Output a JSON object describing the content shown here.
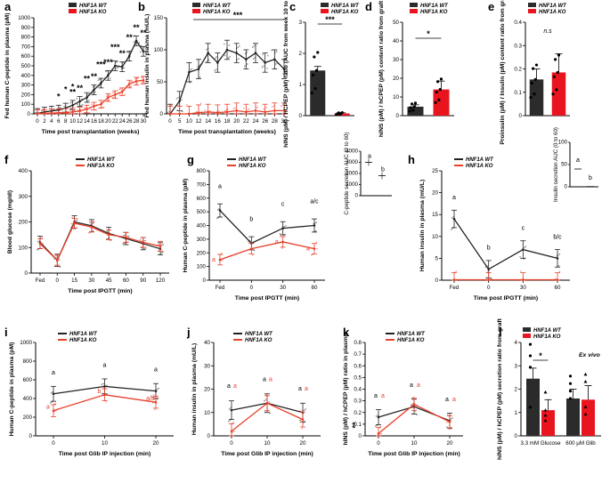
{
  "colors": {
    "wt": "#222222",
    "ko": "#e8402a",
    "ko_bar": "#e8141e",
    "wt_bar": "#2b2b2b"
  },
  "legend": {
    "wt": "HNF1A WT",
    "ko": "HNF1A KO"
  },
  "panels": {
    "a": {
      "label": "a",
      "ylabel": "Fed human C-peptide in plasma (pM)",
      "xlabel": "Time post transplantation (weeks)",
      "stars": [
        "*",
        "*",
        "**",
        "*",
        "**",
        "**",
        "**",
        "***",
        "***",
        "***",
        "**",
        "**",
        "**",
        "**"
      ]
    },
    "b": {
      "label": "b",
      "ylabel": "Fed human insulin in plasma (mU/L)",
      "xlabel": "Time post transplantation (weeks)",
      "stars": [
        "***"
      ]
    },
    "c": {
      "label": "c",
      "ylabel": "hINS (pM) / hCPEP (pM) ratio (AUC from week 10 to 30)",
      "stars": [
        "***"
      ]
    },
    "d": {
      "label": "d",
      "ylabel": "hINS (pM) / hCPEP (pM) content ratio from graft",
      "stars": [
        "*"
      ]
    },
    "e": {
      "label": "e",
      "ylabel": "Proinsulin (pM) / Insulin (pM) content ratio from graft",
      "stars": [
        "n.s"
      ]
    },
    "f": {
      "label": "f",
      "ylabel": "Blood glucose (mg/dl)",
      "xlabel": "Time post IPGTT (min)"
    },
    "g": {
      "label": "g",
      "ylabel": "Human C-peptide in plasma (pM)",
      "xlabel": "Time post IPGTT (min)",
      "inset_ylabel": "C-peptide secretion AUC (0 to 60)",
      "letters_wt": [
        "a",
        "b",
        "c",
        "a/c"
      ],
      "letters_ko": [
        "a",
        "a",
        "a"
      ],
      "inset_letters": [
        "a",
        "b"
      ]
    },
    "h": {
      "label": "h",
      "ylabel": "Human insulin in plasma (mU/L)",
      "xlabel": "Time post IPGTT (min)",
      "inset_ylabel": "Insulin secretion AUC (0 to 60)",
      "letters_wt": [
        "a",
        "b",
        "c",
        "b/c"
      ],
      "inset_letters": [
        "a",
        "b"
      ]
    },
    "i": {
      "label": "i",
      "ylabel": "Human C-peptide in plasma (pM)",
      "xlabel": "Time post Glib IP injection (min)",
      "letters_wt": [
        "a",
        "a",
        "a"
      ],
      "letters_ko": [
        "a",
        "b",
        "a/b"
      ]
    },
    "j": {
      "label": "j",
      "ylabel": "Human insulin in plasma (mU/L)",
      "xlabel": "Time post Glib IP injection (min)",
      "letters_wt": [
        "a",
        "a",
        "a"
      ],
      "letters_ko": [
        "a",
        "a",
        "a"
      ]
    },
    "k": {
      "label": "k",
      "ylabel": "hINS (pM) / hCPEP (pM) ratio in plasma",
      "xlabel": "Time post Glib IP injection (min)",
      "letters_wt": [
        "a",
        "a",
        "a"
      ],
      "letters_ko": [
        "a",
        "a",
        "a"
      ],
      "stars": [
        "**"
      ]
    },
    "l": {
      "label": "l",
      "ylabel": "hINS (pM) / hCPEP (pM) secretion ratio from graft",
      "stars": [
        "*"
      ],
      "note": "Ex vivo",
      "group_labels": [
        "3.3 mM Glucose",
        "600 μM Glib"
      ]
    }
  },
  "chart_data": [
    {
      "id": "a",
      "type": "line",
      "title": "",
      "xlabel": "Time post transplantation (weeks)",
      "ylabel": "Fed human C-peptide in plasma (pM)",
      "x": [
        0,
        2,
        4,
        6,
        8,
        10,
        12,
        14,
        16,
        18,
        20,
        22,
        24,
        26,
        28,
        30
      ],
      "ylim": [
        0,
        1000
      ],
      "yticks": [
        0,
        100,
        200,
        300,
        400,
        500,
        600,
        700,
        800,
        900,
        1000
      ],
      "series": [
        {
          "name": "HNF1A WT",
          "values": [
            5,
            20,
            30,
            40,
            60,
            90,
            130,
            170,
            250,
            320,
            400,
            500,
            490,
            600,
            760,
            650
          ]
        },
        {
          "name": "HNF1A KO",
          "values": [
            3,
            5,
            8,
            10,
            15,
            20,
            30,
            50,
            80,
            100,
            170,
            200,
            230,
            310,
            340,
            350
          ]
        }
      ]
    },
    {
      "id": "b",
      "type": "line",
      "xlabel": "Time post transplantation (weeks)",
      "ylabel": "Fed human insulin in plasma (mU/L)",
      "x": [
        0,
        5,
        10,
        12,
        14,
        16,
        18,
        20,
        22,
        24,
        26,
        28,
        30
      ],
      "ylim": [
        0,
        150
      ],
      "yticks": [
        0,
        50,
        100,
        150
      ],
      "series": [
        {
          "name": "HNF1A WT",
          "values": [
            0,
            20,
            65,
            70,
            95,
            80,
            100,
            95,
            85,
            95,
            80,
            85,
            70
          ]
        },
        {
          "name": "HNF1A KO",
          "values": [
            0,
            0,
            0,
            2,
            3,
            2,
            3,
            5,
            3,
            5,
            3,
            5,
            5
          ]
        }
      ]
    },
    {
      "id": "c",
      "type": "bar",
      "ylabel": "hINS (pM) / hCPEP (pM) ratio (AUC from week 10 to 30)",
      "categories": [
        "HNF1A WT",
        "HNF1A KO"
      ],
      "values": [
        1.45,
        0.07
      ],
      "errors": [
        0.13,
        0.02
      ],
      "ylim": [
        0,
        3
      ],
      "yticks": [
        0,
        1,
        2,
        3
      ]
    },
    {
      "id": "d",
      "type": "bar",
      "ylabel": "hINS (pM) / hCPEP (pM) content ratio from graft",
      "categories": [
        "HNF1A WT",
        "HNF1A KO"
      ],
      "values": [
        4.8,
        14
      ],
      "errors": [
        1,
        4.5
      ],
      "ylim": [
        0,
        50
      ],
      "yticks": [
        0,
        10,
        20,
        30,
        40,
        50
      ]
    },
    {
      "id": "e",
      "type": "bar",
      "ylabel": "Proinsulin (pM) / Insulin (pM) content ratio from graft",
      "categories": [
        "HNF1A WT",
        "HNF1A KO"
      ],
      "values": [
        0.155,
        0.185
      ],
      "errors": [
        0.045,
        0.08
      ],
      "ylim": [
        0,
        0.4
      ],
      "yticks": [
        0,
        0.1,
        0.2,
        0.3,
        0.4
      ]
    },
    {
      "id": "f",
      "type": "line",
      "xlabel": "Time post IPGTT (min)",
      "ylabel": "Blood glucose (mg/dl)",
      "categories": [
        "Fed",
        "0",
        "15",
        "30",
        "45",
        "60",
        "90",
        "120"
      ],
      "ylim": [
        0,
        400
      ],
      "yticks": [
        0,
        100,
        200,
        300,
        400
      ],
      "series": [
        {
          "name": "HNF1A WT",
          "values": [
            120,
            50,
            200,
            185,
            155,
            135,
            115,
            95
          ]
        },
        {
          "name": "HNF1A KO",
          "values": [
            115,
            50,
            195,
            180,
            150,
            140,
            120,
            105
          ]
        }
      ]
    },
    {
      "id": "g",
      "type": "line",
      "xlabel": "Time post IPGTT (min)",
      "ylabel": "Human C-peptide in plasma (pM)",
      "categories": [
        "Fed",
        "0",
        "30",
        "60"
      ],
      "ylim": [
        0,
        800
      ],
      "yticks": [
        0,
        100,
        200,
        300,
        400,
        500,
        600,
        700,
        800
      ],
      "series": [
        {
          "name": "HNF1A WT",
          "values": [
            510,
            270,
            380,
            400
          ]
        },
        {
          "name": "HNF1A KO",
          "values": [
            150,
            230,
            280,
            230
          ]
        }
      ],
      "inset": {
        "type": "bar",
        "categories": [
          "HNF1A WT",
          "HNF1A KO"
        ],
        "values": [
          3000,
          1800
        ],
        "ylim": [
          0,
          4000
        ],
        "yticks": [
          0,
          1000,
          2000,
          3000,
          4000
        ]
      }
    },
    {
      "id": "h",
      "type": "line",
      "xlabel": "Time post IPGTT (min)",
      "ylabel": "Human insulin in plasma (mU/L)",
      "categories": [
        "Fed",
        "0",
        "30",
        "60"
      ],
      "ylim": [
        0,
        25
      ],
      "yticks": [
        0,
        5,
        10,
        15,
        20,
        25
      ],
      "series": [
        {
          "name": "HNF1A WT",
          "values": [
            14,
            2.5,
            7,
            5
          ]
        },
        {
          "name": "HNF1A KO",
          "values": [
            0.1,
            0.1,
            0.1,
            0.1
          ]
        }
      ],
      "inset": {
        "type": "bar",
        "categories": [
          "HNF1A WT",
          "HNF1A KO"
        ],
        "values": [
          40,
          0.5
        ],
        "ylim": [
          0,
          100
        ],
        "yticks": [
          0,
          50,
          100
        ]
      }
    },
    {
      "id": "i",
      "type": "line",
      "xlabel": "Time post Glib IP injection (min)",
      "ylabel": "Human C-peptide in plasma (pM)",
      "categories": [
        "0",
        "10",
        "20"
      ],
      "ylim": [
        0,
        1000
      ],
      "yticks": [
        0,
        200,
        400,
        600,
        800,
        1000
      ],
      "series": [
        {
          "name": "HNF1A WT",
          "values": [
            450,
            530,
            480
          ]
        },
        {
          "name": "HNF1A KO",
          "values": [
            270,
            440,
            360
          ]
        }
      ]
    },
    {
      "id": "j",
      "type": "line",
      "xlabel": "Time post Glib IP injection (min)",
      "ylabel": "Human insulin in plasma (mU/L)",
      "categories": [
        "0",
        "10",
        "20"
      ],
      "ylim": [
        0,
        40
      ],
      "yticks": [
        0,
        10,
        20,
        30,
        40
      ],
      "series": [
        {
          "name": "HNF1A WT",
          "values": [
            11,
            14,
            10
          ]
        },
        {
          "name": "HNF1A KO",
          "values": [
            2,
            14,
            7
          ]
        }
      ]
    },
    {
      "id": "k",
      "type": "line",
      "xlabel": "Time post Glib IP injection (min)",
      "ylabel": "hINS (pM) / hCPEP (pM) ratio in plasma",
      "categories": [
        "0",
        "10",
        "20"
      ],
      "ylim": [
        0,
        0.8
      ],
      "yticks": [
        0,
        0.1,
        0.2,
        0.3,
        0.4,
        0.5,
        0.6,
        0.7,
        0.8
      ],
      "series": [
        {
          "name": "HNF1A WT",
          "values": [
            0.16,
            0.25,
            0.13
          ]
        },
        {
          "name": "HNF1A KO",
          "values": [
            0.02,
            0.27,
            0.12
          ]
        }
      ]
    },
    {
      "id": "l",
      "type": "bar",
      "ylabel": "hINS (pM) / hCPEP (pM) secretion ratio from graft",
      "categories": [
        "3.3 mM Glucose",
        "600 μM Glib"
      ],
      "series": [
        {
          "name": "HNF1A WT",
          "values": [
            2.45,
            1.6
          ],
          "errors": [
            0.45,
            0.4
          ]
        },
        {
          "name": "HNF1A KO",
          "values": [
            1.1,
            1.55
          ],
          "errors": [
            0.45,
            0.6
          ]
        }
      ],
      "ylim": [
        0,
        4
      ],
      "yticks": [
        0,
        1,
        2,
        3,
        4
      ]
    }
  ]
}
